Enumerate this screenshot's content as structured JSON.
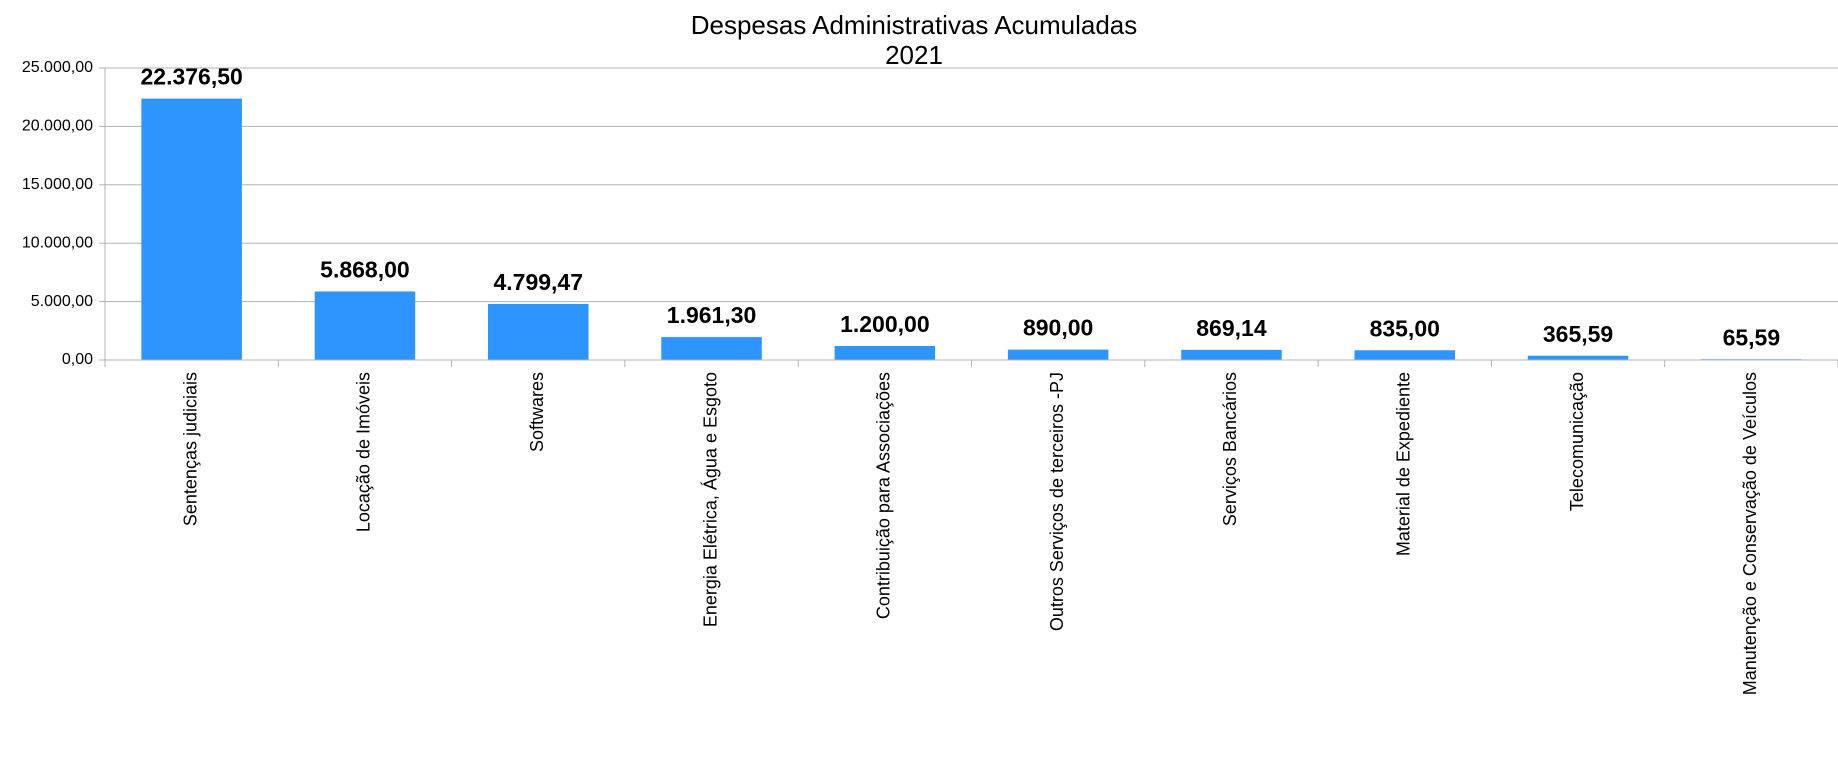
{
  "chart_data": {
    "type": "bar",
    "title": "Despesas  Administrativas Acumuladas",
    "subtitle": "2021",
    "categories": [
      "Sentenças judiciais",
      "Locação de Imóveis",
      "Softwares",
      "Energia Elétrica, Água e Esgoto",
      "Contribuição para Associações",
      "Outros Serviços de terceiros -PJ",
      "Serviços Bancários",
      "Material de Expediente",
      "Telecomunicação",
      "Manutenção e Conservação de Veículos"
    ],
    "values": [
      22376.5,
      5868,
      4799.47,
      1961.3,
      1200,
      890,
      869.14,
      835,
      365.59,
      65.59
    ],
    "value_labels": [
      "22.376,50",
      "5.868,00",
      "4.799,47",
      "1.961,30",
      "1.200,00",
      "890,00",
      "869,14",
      "835,00",
      "365,59",
      "65,59"
    ],
    "color": "#2e95ff",
    "ylim": [
      0,
      25000
    ],
    "yticks": [
      {
        "value": 0,
        "label": "0,00"
      },
      {
        "value": 5000,
        "label": "5.000,00"
      },
      {
        "value": 10000,
        "label": "10.000,00"
      },
      {
        "value": 15000,
        "label": "15.000,00"
      },
      {
        "value": 20000,
        "label": "20.000,00"
      },
      {
        "value": 25000,
        "label": "25.000,00"
      }
    ],
    "grid": true
  }
}
